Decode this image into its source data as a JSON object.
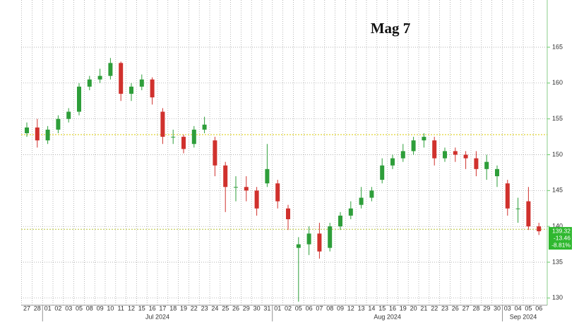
{
  "chart_data": {
    "type": "candlestick",
    "title": "Mag 7",
    "categories": [
      "27",
      "28",
      "01",
      "02",
      "03",
      "05",
      "08",
      "09",
      "10",
      "11",
      "12",
      "15",
      "16",
      "17",
      "18",
      "19",
      "22",
      "23",
      "24",
      "25",
      "26",
      "29",
      "30",
      "31",
      "01",
      "02",
      "05",
      "06",
      "07",
      "08",
      "09",
      "12",
      "13",
      "14",
      "15",
      "16",
      "19",
      "20",
      "21",
      "22",
      "23",
      "26",
      "27",
      "28",
      "29",
      "30",
      "03",
      "04",
      "05",
      "06"
    ],
    "month_labels": [
      "Jul 2024",
      "Aug 2024",
      "Sep 2024"
    ],
    "open": [
      153,
      153.8,
      152,
      153.5,
      155,
      156,
      159.5,
      160.5,
      161,
      162.8,
      158.5,
      159.5,
      160.5,
      156,
      152.5,
      152.5,
      151.5,
      153.5,
      152,
      148.5,
      145.5,
      145.5,
      145,
      146,
      146,
      142.5,
      137,
      137.5,
      139,
      137,
      140,
      141.5,
      143,
      144,
      146.5,
      148.5,
      149.5,
      150.5,
      152,
      152,
      149.5,
      150.5,
      150,
      149.5,
      148,
      147,
      146,
      142.5,
      143.5,
      140
    ],
    "high": [
      154.5,
      155,
      154,
      155.5,
      156.5,
      160,
      161,
      162,
      163.5,
      163,
      160,
      161.2,
      160.8,
      156.5,
      153.5,
      152.8,
      154,
      155.3,
      152.5,
      149,
      147,
      147,
      145.5,
      151.5,
      146.5,
      143,
      138.5,
      140,
      140.5,
      140.5,
      142,
      143.5,
      145.5,
      145.5,
      149.5,
      150,
      151.5,
      152.5,
      153,
      152.5,
      151,
      151,
      150.5,
      150.5,
      150,
      148.5,
      146.5,
      144,
      145.5,
      140.5
    ],
    "low": [
      152.5,
      151,
      151.5,
      153,
      154.5,
      155.5,
      159,
      160,
      160.5,
      157.5,
      157.5,
      159,
      157,
      151.5,
      151.5,
      150.2,
      151,
      153,
      147,
      142,
      143.5,
      143.5,
      141.5,
      145.5,
      142.5,
      139.5,
      129.5,
      136,
      135.5,
      136.5,
      139.5,
      141,
      142.5,
      143.5,
      146,
      148,
      149,
      150,
      151,
      148.5,
      149,
      149,
      148,
      147,
      146.5,
      145.5,
      141.5,
      140.5,
      139.5,
      138.8
    ],
    "close": [
      153.8,
      152,
      153.5,
      155,
      156,
      159.5,
      160.5,
      161,
      162.8,
      158.5,
      159.5,
      160.5,
      158,
      152.5,
      152.5,
      150.8,
      153.5,
      154.2,
      148.5,
      145.5,
      145.5,
      145,
      142.5,
      148,
      143.5,
      141,
      137.5,
      139,
      136.5,
      140,
      141.5,
      142.5,
      144,
      145,
      148.5,
      149.5,
      150.5,
      152,
      152.5,
      149.5,
      150.5,
      150,
      149.5,
      148,
      149,
      148,
      142.5,
      142.5,
      140,
      139.32
    ],
    "up_color": "#2e9e3a",
    "down_color": "#d0312d",
    "reference_lines": [
      152.8,
      139.6
    ],
    "last_price": 139.32,
    "change": -13.46,
    "change_pct": -8.81,
    "change_pct_label": "-8.81%",
    "ylim": [
      129,
      171
    ],
    "yticks": [
      130,
      135,
      140,
      145,
      150,
      155,
      160,
      165
    ],
    "grid": true
  }
}
